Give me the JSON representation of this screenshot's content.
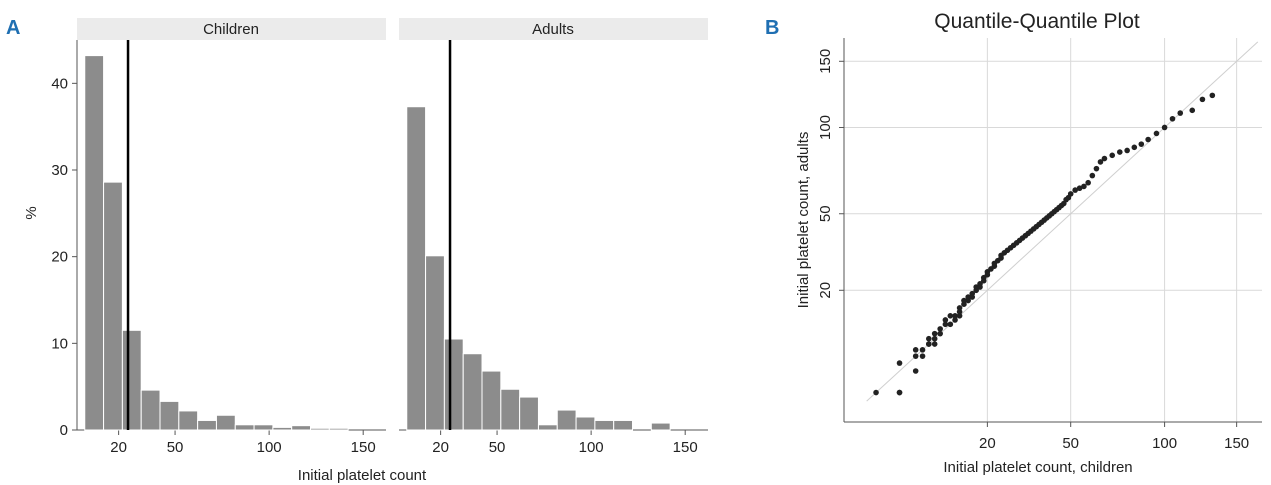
{
  "panels": {
    "a_letter": "A",
    "b_letter": "B"
  },
  "chart_data": [
    {
      "type": "bar",
      "subtype": "faceted-histogram",
      "xlabel": "Initial platelet count",
      "ylabel": "%",
      "x_ticks": [
        "20",
        "50",
        "100",
        "150"
      ],
      "y_ticks": [
        "0",
        "10",
        "20",
        "30",
        "40"
      ],
      "ylim": [
        0,
        45
      ],
      "xlim": [
        0,
        160
      ],
      "bin_width": 10,
      "bin_edges_start": 2,
      "reference_line_x": 25,
      "facets": [
        {
          "name": "Children",
          "values": [
            43.2,
            28.6,
            11.5,
            4.6,
            3.3,
            2.2,
            1.1,
            1.7,
            0.6,
            0.6,
            0.3,
            0.5,
            0.2,
            0.2
          ]
        },
        {
          "name": "Adults",
          "values": [
            37.3,
            20.1,
            10.5,
            8.8,
            6.8,
            4.7,
            3.8,
            0.6,
            2.3,
            1.5,
            1.1,
            1.1,
            0,
            0.8
          ]
        }
      ],
      "grid": false
    },
    {
      "type": "scatter",
      "title": "Quantile-Quantile Plot",
      "xlabel": "Initial platelet count, children",
      "ylabel": "Initial platelet count, adults",
      "x_ticks": [
        "20",
        "50",
        "100",
        "150"
      ],
      "y_ticks": [
        "20",
        "50",
        "100",
        "150"
      ],
      "scale": "sqrt",
      "xlim": [
        0,
        170
      ],
      "ylim": [
        0,
        170
      ],
      "grid": true,
      "reference_line": "y = x",
      "points": [
        [
          1,
          1
        ],
        [
          3,
          1
        ],
        [
          3,
          1
        ],
        [
          3,
          4
        ],
        [
          5,
          3
        ],
        [
          5,
          5
        ],
        [
          5,
          6
        ],
        [
          6,
          5
        ],
        [
          6,
          6
        ],
        [
          7,
          7
        ],
        [
          7,
          7
        ],
        [
          7,
          8
        ],
        [
          8,
          7
        ],
        [
          8,
          8
        ],
        [
          8,
          9
        ],
        [
          9,
          9
        ],
        [
          9,
          10
        ],
        [
          10,
          11
        ],
        [
          10,
          12
        ],
        [
          11,
          11
        ],
        [
          11,
          13
        ],
        [
          12,
          12
        ],
        [
          12,
          13
        ],
        [
          13,
          13
        ],
        [
          13,
          14
        ],
        [
          13,
          15
        ],
        [
          14,
          16
        ],
        [
          14,
          17
        ],
        [
          15,
          17
        ],
        [
          15,
          18
        ],
        [
          16,
          18
        ],
        [
          16,
          19
        ],
        [
          17,
          20
        ],
        [
          17,
          21
        ],
        [
          18,
          21
        ],
        [
          18,
          22
        ],
        [
          19,
          23
        ],
        [
          19,
          24
        ],
        [
          20,
          25
        ],
        [
          20,
          26
        ],
        [
          21,
          27
        ],
        [
          22,
          28
        ],
        [
          22,
          29
        ],
        [
          23,
          30
        ],
        [
          24,
          31
        ],
        [
          24,
          32
        ],
        [
          25,
          33
        ],
        [
          26,
          34
        ],
        [
          27,
          35
        ],
        [
          28,
          36
        ],
        [
          29,
          37
        ],
        [
          30,
          38
        ],
        [
          31,
          39
        ],
        [
          32,
          40
        ],
        [
          33,
          41
        ],
        [
          34,
          42
        ],
        [
          35,
          43
        ],
        [
          36,
          44
        ],
        [
          37,
          45
        ],
        [
          38,
          46
        ],
        [
          39,
          47
        ],
        [
          40,
          48
        ],
        [
          41,
          49
        ],
        [
          42,
          50
        ],
        [
          43,
          51
        ],
        [
          44,
          52
        ],
        [
          45,
          53
        ],
        [
          46,
          54
        ],
        [
          47,
          55
        ],
        [
          48,
          57
        ],
        [
          49,
          58
        ],
        [
          50,
          60
        ],
        [
          52,
          62
        ],
        [
          54,
          63
        ],
        [
          56,
          64
        ],
        [
          58,
          66
        ],
        [
          60,
          70
        ],
        [
          62,
          74
        ],
        [
          64,
          78
        ],
        [
          66,
          80
        ],
        [
          70,
          82
        ],
        [
          74,
          84
        ],
        [
          78,
          85
        ],
        [
          82,
          87
        ],
        [
          86,
          89
        ],
        [
          90,
          92
        ],
        [
          95,
          96
        ],
        [
          100,
          100
        ],
        [
          105,
          106
        ],
        [
          110,
          110
        ],
        [
          118,
          112
        ],
        [
          125,
          120
        ],
        [
          132,
          123
        ]
      ]
    }
  ]
}
